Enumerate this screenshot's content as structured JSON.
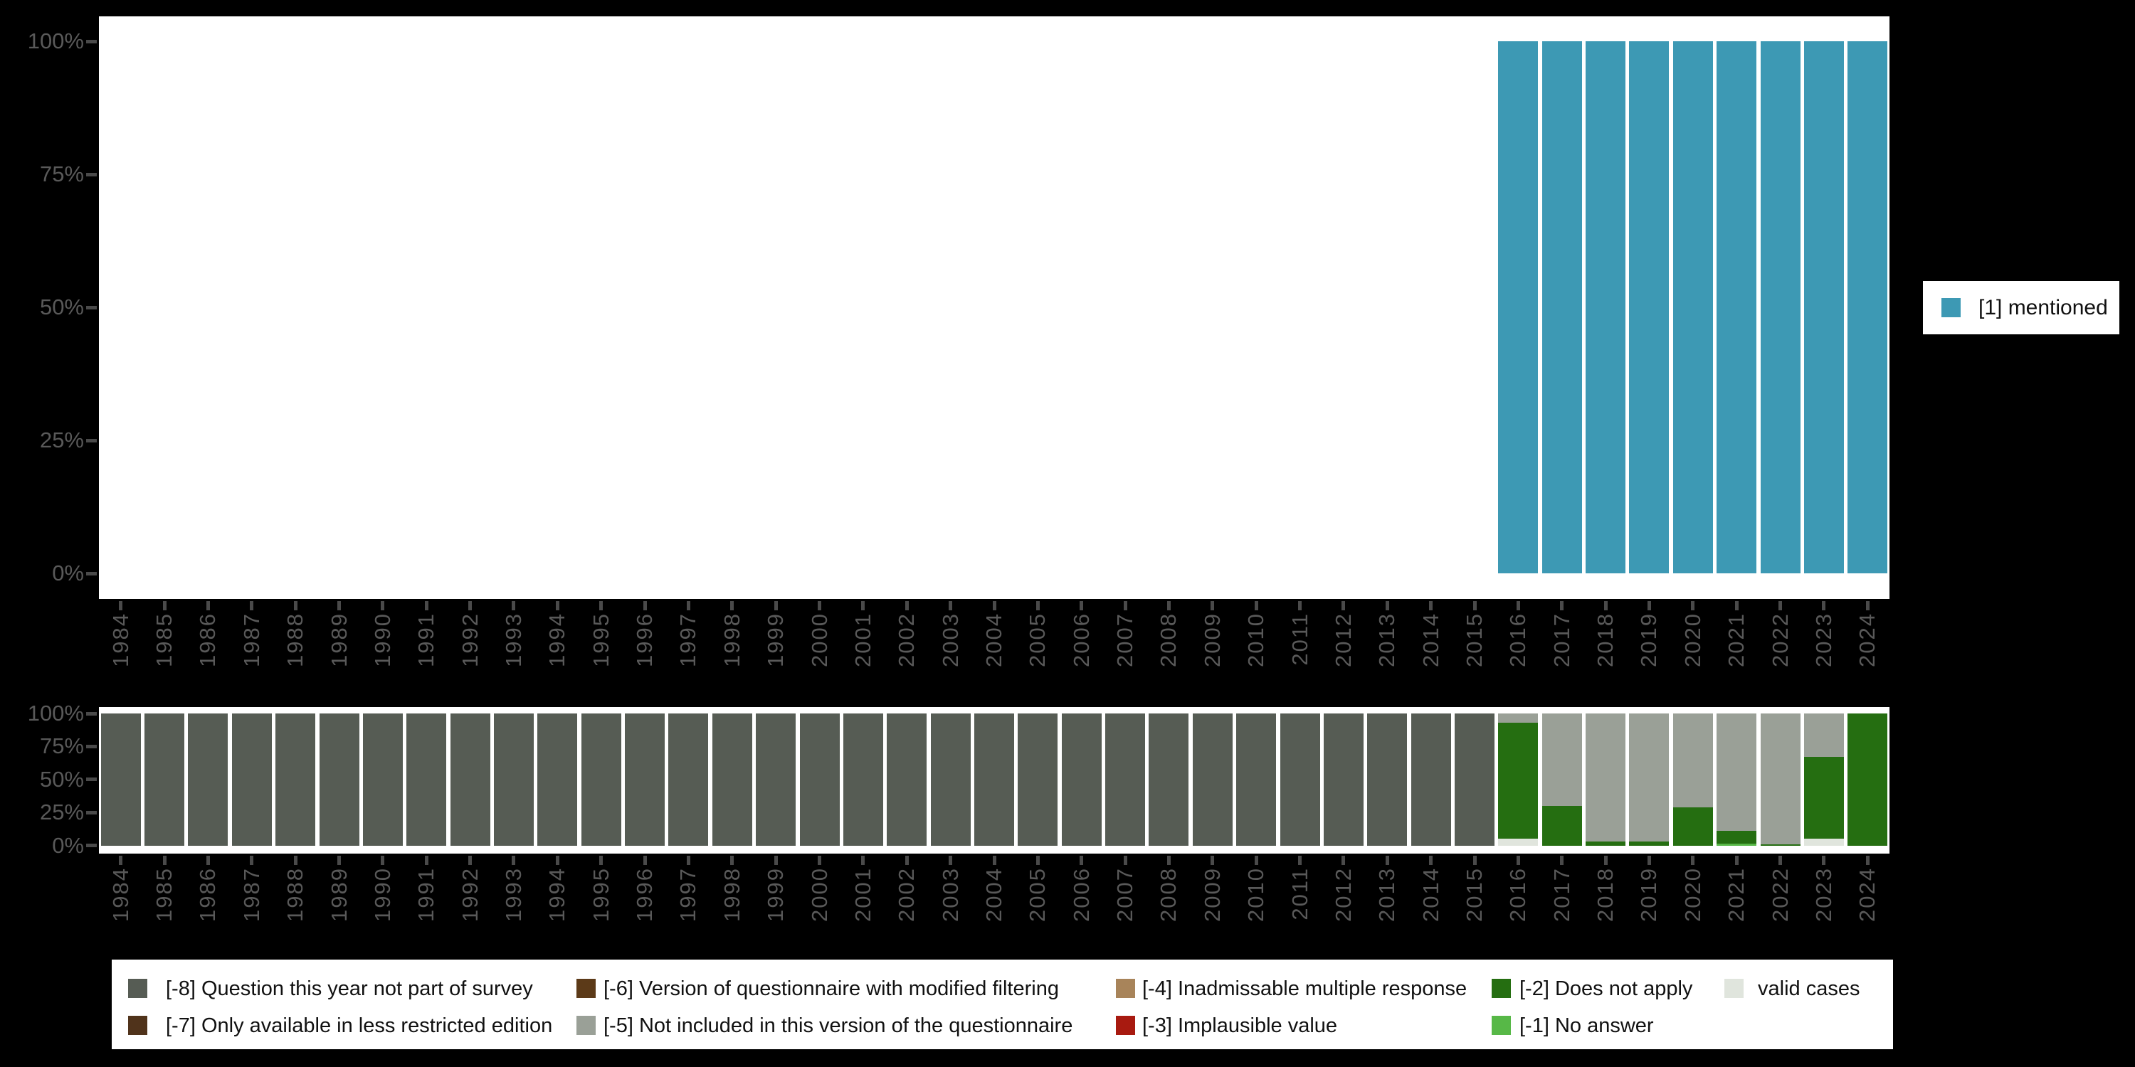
{
  "colors": {
    "background": "#000000",
    "plot_bg": "#ffffff",
    "axis_text": "#595959",
    "tick": "#4a4a4a",
    "legend_text": "#111111",
    "mentioned": "#3d99b4",
    "m8": "#565c54",
    "m7": "#50331b",
    "m6": "#5c3a18",
    "m5": "#9aa097",
    "m4": "#a8845a",
    "m3": "#a81a10",
    "m2": "#256e11",
    "m1": "#57b847",
    "valid": "#e0e5dd"
  },
  "right_legend": {
    "label": "[1] mentioned",
    "color": "#3d99b4"
  },
  "axis": {
    "y_tick_labels": [
      "0%",
      "25%",
      "50%",
      "75%",
      "100%"
    ],
    "y_tick_values": [
      0,
      25,
      50,
      75,
      100
    ]
  },
  "years": [
    "1984",
    "1985",
    "1986",
    "1987",
    "1988",
    "1989",
    "1990",
    "1991",
    "1992",
    "1993",
    "1994",
    "1995",
    "1996",
    "1997",
    "1998",
    "1999",
    "2000",
    "2001",
    "2002",
    "2003",
    "2004",
    "2005",
    "2006",
    "2007",
    "2008",
    "2009",
    "2010",
    "2011",
    "2012",
    "2013",
    "2014",
    "2015",
    "2016",
    "2017",
    "2018",
    "2019",
    "2020",
    "2021",
    "2022",
    "2023",
    "2024"
  ],
  "chart_data": [
    {
      "type": "bar",
      "title": "",
      "xlabel": "",
      "ylabel": "",
      "ylim": [
        0,
        100
      ],
      "grid": false,
      "legend_position": "right",
      "categories": [
        "1984",
        "1985",
        "1986",
        "1987",
        "1988",
        "1989",
        "1990",
        "1991",
        "1992",
        "1993",
        "1994",
        "1995",
        "1996",
        "1997",
        "1998",
        "1999",
        "2000",
        "2001",
        "2002",
        "2003",
        "2004",
        "2005",
        "2006",
        "2007",
        "2008",
        "2009",
        "2010",
        "2011",
        "2012",
        "2013",
        "2014",
        "2015",
        "2016",
        "2017",
        "2018",
        "2019",
        "2020",
        "2021",
        "2022",
        "2023",
        "2024"
      ],
      "series": [
        {
          "name": "[1] mentioned",
          "color": "#3d99b4",
          "values": [
            null,
            null,
            null,
            null,
            null,
            null,
            null,
            null,
            null,
            null,
            null,
            null,
            null,
            null,
            null,
            null,
            null,
            null,
            null,
            null,
            null,
            null,
            null,
            null,
            null,
            null,
            null,
            null,
            null,
            null,
            null,
            null,
            100,
            100,
            100,
            100,
            100,
            100,
            100,
            100,
            100
          ]
        }
      ]
    },
    {
      "type": "bar",
      "stacked": true,
      "title": "",
      "xlabel": "",
      "ylabel": "",
      "ylim": [
        0,
        100
      ],
      "grid": false,
      "legend_position": "bottom",
      "categories": [
        "1984",
        "1985",
        "1986",
        "1987",
        "1988",
        "1989",
        "1990",
        "1991",
        "1992",
        "1993",
        "1994",
        "1995",
        "1996",
        "1997",
        "1998",
        "1999",
        "2000",
        "2001",
        "2002",
        "2003",
        "2004",
        "2005",
        "2006",
        "2007",
        "2008",
        "2009",
        "2010",
        "2011",
        "2012",
        "2013",
        "2014",
        "2015",
        "2016",
        "2017",
        "2018",
        "2019",
        "2020",
        "2021",
        "2022",
        "2023",
        "2024"
      ],
      "series": [
        {
          "name": "valid cases",
          "color": "#e0e5dd",
          "values": [
            0,
            0,
            0,
            0,
            0,
            0,
            0,
            0,
            0,
            0,
            0,
            0,
            0,
            0,
            0,
            0,
            0,
            0,
            0,
            0,
            0,
            0,
            0,
            0,
            0,
            0,
            0,
            0,
            0,
            0,
            0,
            0,
            5,
            0,
            0,
            0,
            0,
            0,
            0,
            5,
            0
          ]
        },
        {
          "name": "[-1] No answer",
          "color": "#57b847",
          "values": [
            0,
            0,
            0,
            0,
            0,
            0,
            0,
            0,
            0,
            0,
            0,
            0,
            0,
            0,
            0,
            0,
            0,
            0,
            0,
            0,
            0,
            0,
            0,
            0,
            0,
            0,
            0,
            0,
            0,
            0,
            0,
            0,
            0,
            0,
            0,
            0,
            0,
            1.5,
            0,
            0,
            0
          ]
        },
        {
          "name": "[-2] Does not apply",
          "color": "#256e11",
          "values": [
            0,
            0,
            0,
            0,
            0,
            0,
            0,
            0,
            0,
            0,
            0,
            0,
            0,
            0,
            0,
            0,
            0,
            0,
            0,
            0,
            0,
            0,
            0,
            0,
            0,
            0,
            0,
            0,
            0,
            0,
            0,
            0,
            88,
            30,
            3,
            3,
            29,
            9.5,
            1,
            62,
            100
          ]
        },
        {
          "name": "[-5] Not included in this version of the questionnaire",
          "color": "#9aa097",
          "values": [
            0,
            0,
            0,
            0,
            0,
            0,
            0,
            0,
            0,
            0,
            0,
            0,
            0,
            0,
            0,
            0,
            0,
            0,
            0,
            0,
            0,
            0,
            0,
            0,
            0,
            0,
            0,
            0,
            0,
            0,
            0,
            0,
            7,
            70,
            97,
            97,
            71,
            89,
            99,
            33,
            0
          ]
        },
        {
          "name": "[-8] Question this year not part of survey",
          "color": "#565c54",
          "values": [
            100,
            100,
            100,
            100,
            100,
            100,
            100,
            100,
            100,
            100,
            100,
            100,
            100,
            100,
            100,
            100,
            100,
            100,
            100,
            100,
            100,
            100,
            100,
            100,
            100,
            100,
            100,
            100,
            100,
            100,
            100,
            100,
            0,
            0,
            0,
            0,
            0,
            0,
            0,
            0,
            0
          ]
        }
      ]
    }
  ],
  "missing_legend": {
    "columns": [
      {
        "items": [
          {
            "code": "-8",
            "label": "[-8] Question this year not part of survey",
            "color": "#565c54"
          },
          {
            "code": "-7",
            "label": "[-7] Only available in less restricted edition",
            "color": "#50331b"
          }
        ]
      },
      {
        "items": [
          {
            "code": "-6",
            "label": "[-6] Version of questionnaire with modified filtering",
            "color": "#5c3a18"
          },
          {
            "code": "-5",
            "label": "[-5] Not included in this version of the questionnaire",
            "color": "#9aa097"
          }
        ]
      },
      {
        "items": [
          {
            "code": "-4",
            "label": "[-4] Inadmissable multiple response",
            "color": "#a8845a"
          },
          {
            "code": "-3",
            "label": "[-3] Implausible value",
            "color": "#a81a10"
          }
        ]
      },
      {
        "items": [
          {
            "code": "-2",
            "label": "[-2] Does not apply",
            "color": "#256e11"
          },
          {
            "code": "-1",
            "label": "[-1] No answer",
            "color": "#57b847"
          }
        ]
      },
      {
        "items": [
          {
            "code": "valid",
            "label": "valid cases",
            "color": "#e0e5dd"
          }
        ]
      }
    ]
  }
}
